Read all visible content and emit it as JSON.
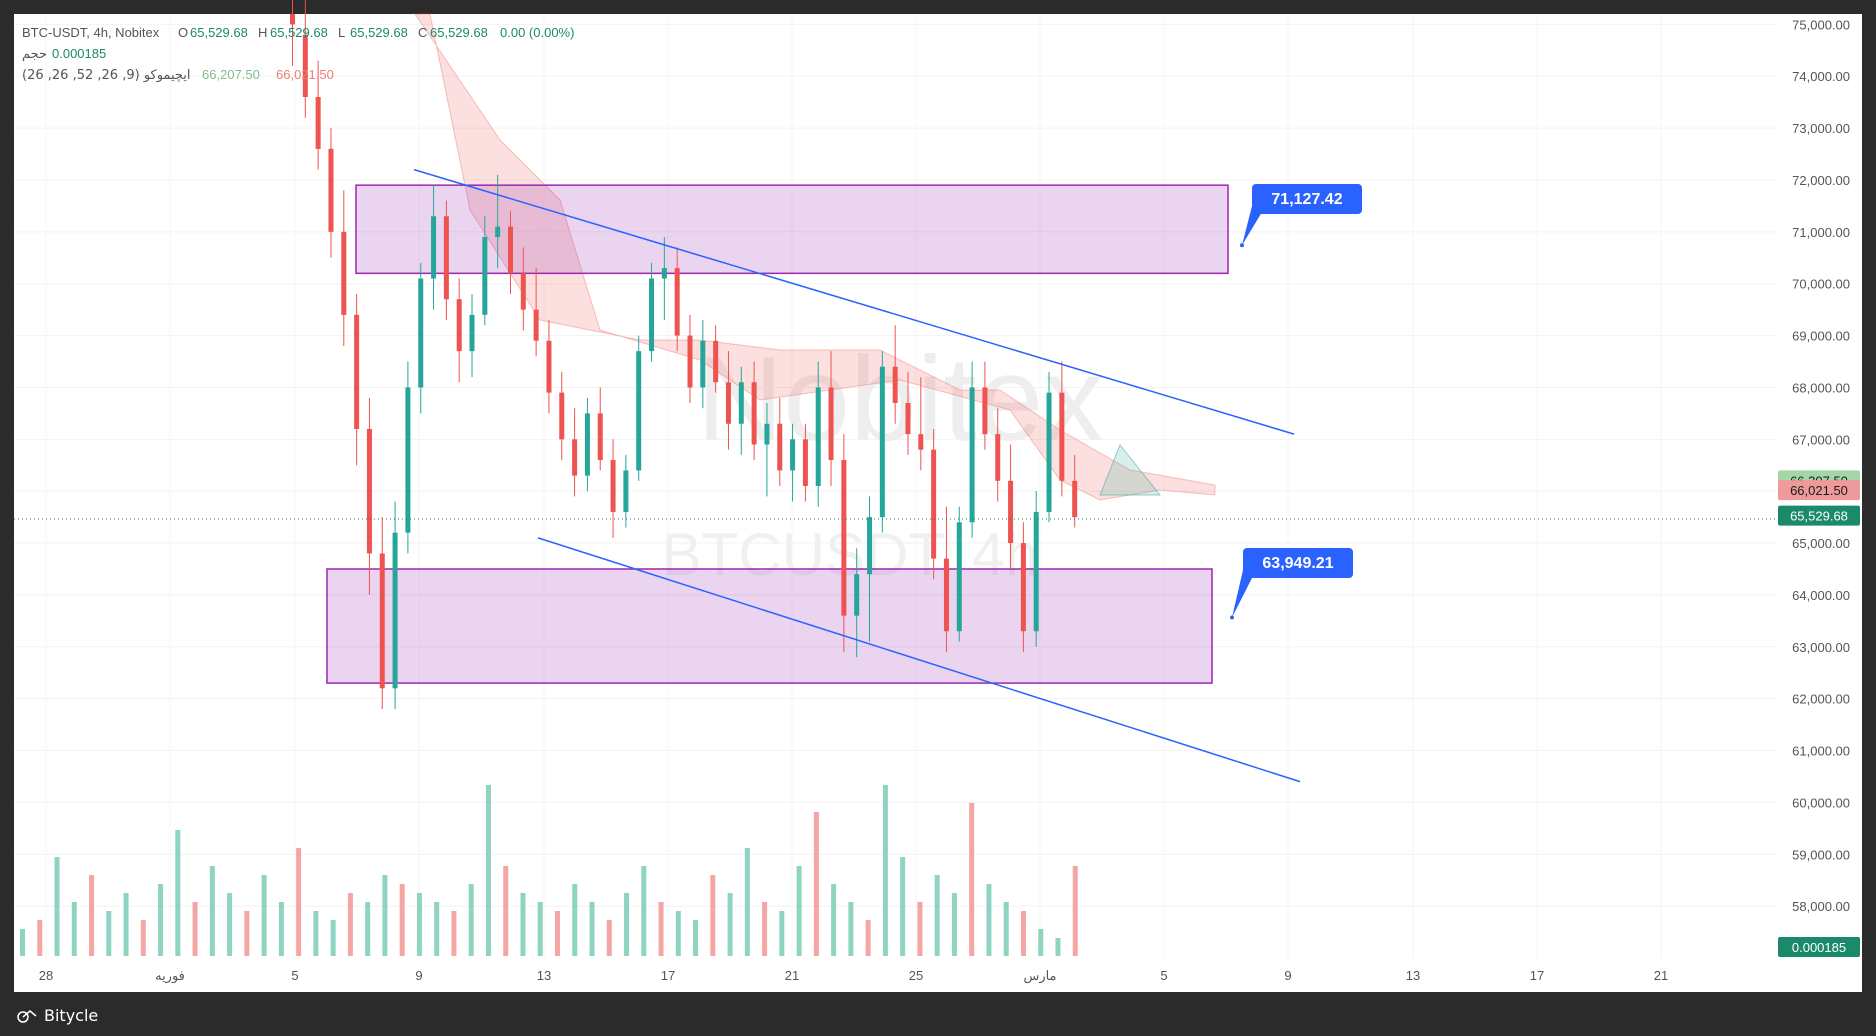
{
  "header": {
    "symbol": "BTC-USDT, 4h, Nobitex",
    "ohlc": [
      {
        "k": "O",
        "v": "65,529.68"
      },
      {
        "k": "H",
        "v": "65,529.68"
      },
      {
        "k": "L",
        "v": "65,529.68"
      },
      {
        "k": "C",
        "v": "65,529.68"
      }
    ],
    "change": "0.00 (0.00%)",
    "volume_label": "حجم",
    "volume_value": "0.000185",
    "ichimoku_label": "ایچیموکو (9, 26, 52, 26, 26)",
    "ichimoku_val1": "66,207.50",
    "ichimoku_val2": "66,021.50"
  },
  "watermark": {
    "main": "Nobitex",
    "sub": "BTCUSDT, 4h"
  },
  "brand": {
    "name": "Bitycle"
  },
  "colors": {
    "up": "#26a69a",
    "down": "#ef5350",
    "zone": "#9c27b0",
    "line": "#2962ff",
    "label": "#2962ff"
  },
  "chart_data": {
    "type": "candlestick",
    "ylim": [
      57000,
      75200
    ],
    "y_ticks": [
      "75,000.00",
      "74,000.00",
      "73,000.00",
      "72,000.00",
      "71,000.00",
      "70,000.00",
      "69,000.00",
      "68,000.00",
      "67,000.00",
      "66,000.00",
      "65,000.00",
      "64,000.00",
      "63,000.00",
      "62,000.00",
      "61,000.00",
      "60,000.00",
      "59,000.00",
      "58,000.00"
    ],
    "x_ticks": [
      "28",
      "فوریه",
      "5",
      "9",
      "13",
      "17",
      "21",
      "25",
      "مارس",
      "5",
      "9",
      "13",
      "17",
      "21"
    ],
    "price_labels": [
      {
        "text": "66,207.50",
        "value": 66207.5,
        "color": "#a5d6a7",
        "textcolor": "#1b1b1b"
      },
      {
        "text": "66,021.50",
        "value": 66021.5,
        "color": "#ef9a9a",
        "textcolor": "#1b1b1b"
      },
      {
        "text": "65,529.68",
        "value": 65529.68,
        "color": "#1b8a6b",
        "textcolor": "#ffffff"
      }
    ],
    "volume_label": "0.000185",
    "annotations": [
      {
        "text": "71,127.42",
        "value": 71127.42
      },
      {
        "text": "63,949.21",
        "value": 63949.21
      }
    ],
    "zones": [
      {
        "name": "resistance-zone",
        "top": 71900,
        "bottom": 70200
      },
      {
        "name": "support-zone",
        "top": 64500,
        "bottom": 62300
      }
    ],
    "channel": {
      "upper": [
        [
          0.318,
          72200
        ],
        [
          0.69,
          67100
        ]
      ],
      "lower": [
        [
          0.288,
          65100
        ],
        [
          0.692,
          60400
        ]
      ]
    },
    "candles": [
      [
        0.0,
        75200,
        75800,
        74200,
        75000
      ],
      [
        0.01,
        74800,
        75500,
        73200,
        73600
      ],
      [
        0.02,
        73600,
        74300,
        72200,
        72600
      ],
      [
        0.03,
        72600,
        73000,
        70500,
        71000
      ],
      [
        0.04,
        71000,
        71800,
        68800,
        69400
      ],
      [
        0.05,
        69400,
        69800,
        66500,
        67200
      ],
      [
        0.06,
        67200,
        67800,
        64000,
        64800
      ],
      [
        0.07,
        64800,
        65500,
        61800,
        62200
      ],
      [
        0.08,
        62200,
        65800,
        61800,
        65200
      ],
      [
        0.09,
        65200,
        68500,
        64800,
        68000
      ],
      [
        0.1,
        68000,
        70400,
        67500,
        70100
      ],
      [
        0.11,
        70100,
        71900,
        69500,
        71300
      ],
      [
        0.12,
        71300,
        71600,
        69300,
        69700
      ],
      [
        0.13,
        69700,
        70100,
        68100,
        68700
      ],
      [
        0.14,
        68700,
        69800,
        68200,
        69400
      ],
      [
        0.15,
        69400,
        71300,
        69200,
        70900
      ],
      [
        0.16,
        70900,
        72100,
        70300,
        71100
      ],
      [
        0.17,
        71100,
        71400,
        69800,
        70200
      ],
      [
        0.18,
        70200,
        70700,
        69100,
        69500
      ],
      [
        0.19,
        69500,
        70300,
        68600,
        68900
      ],
      [
        0.2,
        68900,
        69300,
        67500,
        67900
      ],
      [
        0.21,
        67900,
        68300,
        66600,
        67000
      ],
      [
        0.22,
        67000,
        67600,
        65900,
        66300
      ],
      [
        0.23,
        66300,
        67800,
        66000,
        67500
      ],
      [
        0.24,
        67500,
        68000,
        66400,
        66600
      ],
      [
        0.25,
        66600,
        67000,
        65100,
        65600
      ],
      [
        0.26,
        65600,
        66700,
        65300,
        66400
      ],
      [
        0.27,
        66400,
        69000,
        66200,
        68700
      ],
      [
        0.28,
        68700,
        70400,
        68500,
        70100
      ],
      [
        0.29,
        70100,
        70900,
        69300,
        70300
      ],
      [
        0.3,
        70300,
        70700,
        68700,
        69000
      ],
      [
        0.31,
        69000,
        69400,
        67700,
        68000
      ],
      [
        0.32,
        68000,
        69300,
        67600,
        68900
      ],
      [
        0.33,
        68900,
        69200,
        67900,
        68100
      ],
      [
        0.34,
        68100,
        68700,
        66800,
        67300
      ],
      [
        0.35,
        67300,
        68400,
        66700,
        68100
      ],
      [
        0.36,
        68100,
        68500,
        66600,
        66900
      ],
      [
        0.37,
        66900,
        67700,
        65900,
        67300
      ],
      [
        0.38,
        67300,
        67800,
        66100,
        66400
      ],
      [
        0.39,
        66400,
        67300,
        65800,
        67000
      ],
      [
        0.4,
        67000,
        67300,
        65800,
        66100
      ],
      [
        0.41,
        66100,
        68500,
        65700,
        68000
      ],
      [
        0.42,
        68000,
        68700,
        66100,
        66600
      ],
      [
        0.43,
        66600,
        67100,
        62900,
        63600
      ],
      [
        0.44,
        63600,
        64900,
        62800,
        64400
      ],
      [
        0.45,
        64400,
        65900,
        63100,
        65500
      ],
      [
        0.46,
        65500,
        68700,
        65200,
        68400
      ],
      [
        0.47,
        68400,
        69200,
        67300,
        67700
      ],
      [
        0.48,
        67700,
        68300,
        66700,
        67100
      ],
      [
        0.49,
        67100,
        68200,
        66400,
        66800
      ],
      [
        0.5,
        66800,
        67200,
        64300,
        64700
      ],
      [
        0.51,
        64700,
        65700,
        62900,
        63300
      ],
      [
        0.52,
        63300,
        65700,
        63100,
        65400
      ],
      [
        0.53,
        65400,
        68500,
        65100,
        68000
      ],
      [
        0.54,
        68000,
        68500,
        66800,
        67100
      ],
      [
        0.55,
        67100,
        67600,
        65800,
        66200
      ],
      [
        0.56,
        66200,
        66900,
        64500,
        65000
      ],
      [
        0.57,
        65000,
        65400,
        62900,
        63300
      ],
      [
        0.58,
        63300,
        66000,
        63000,
        65600
      ],
      [
        0.59,
        65600,
        68300,
        65400,
        67900
      ],
      [
        0.6,
        67900,
        68500,
        65900,
        66200
      ],
      [
        0.61,
        66200,
        66700,
        65300,
        65500
      ]
    ],
    "volumes": [
      0.15,
      0.2,
      0.55,
      0.3,
      0.45,
      0.25,
      0.35,
      0.2,
      0.4,
      0.7,
      0.3,
      0.5,
      0.35,
      0.25,
      0.45,
      0.3,
      0.6,
      0.25,
      0.2,
      0.35,
      0.3,
      0.45,
      0.4,
      0.35,
      0.3,
      0.25,
      0.4,
      0.95,
      0.5,
      0.35,
      0.3,
      0.25,
      0.4,
      0.3,
      0.2,
      0.35,
      0.5,
      0.3,
      0.25,
      0.2,
      0.45,
      0.35,
      0.6,
      0.3,
      0.25,
      0.5,
      0.8,
      0.4,
      0.3,
      0.2,
      0.95,
      0.55,
      0.3,
      0.45,
      0.35,
      0.85,
      0.4,
      0.3,
      0.25,
      0.15,
      0.1,
      0.5
    ]
  }
}
